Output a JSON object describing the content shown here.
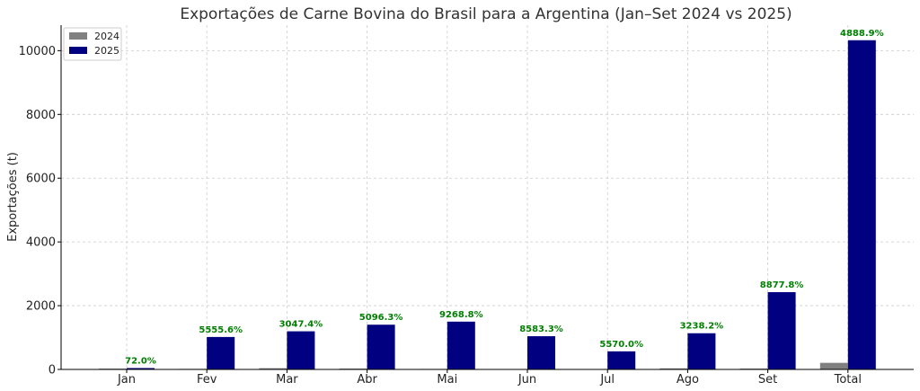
{
  "colors": {
    "series_2024": "#808080",
    "series_2025": "#000080",
    "label_color": "#008000"
  },
  "chart_data": {
    "type": "bar",
    "title": "Exportações de Carne Bovina do Brasil para a Argentina (Jan–Set 2024 vs 2025)",
    "xlabel": "",
    "ylabel": "Exportações (t)",
    "ylim": [
      0,
      10800
    ],
    "yticks": [
      0,
      2000,
      4000,
      6000,
      8000,
      10000
    ],
    "categories": [
      "Jan",
      "Fev",
      "Mar",
      "Abr",
      "Mai",
      "Jun",
      "Jul",
      "Ago",
      "Set",
      "Total"
    ],
    "series": [
      {
        "name": "2024",
        "values": [
          25,
          18,
          38,
          27,
          16,
          12,
          10,
          34,
          27,
          207
        ]
      },
      {
        "name": "2025",
        "values": [
          43,
          1018,
          1196,
          1403,
          1499,
          1042,
          567,
          1135,
          2424,
          10327
        ]
      }
    ],
    "data_labels": [
      "72.0%",
      "5555.6%",
      "3047.4%",
      "5096.3%",
      "9268.8%",
      "8583.3%",
      "5570.0%",
      "3238.2%",
      "8877.8%",
      "4888.9%"
    ],
    "grid": true,
    "legend": "top-left"
  }
}
